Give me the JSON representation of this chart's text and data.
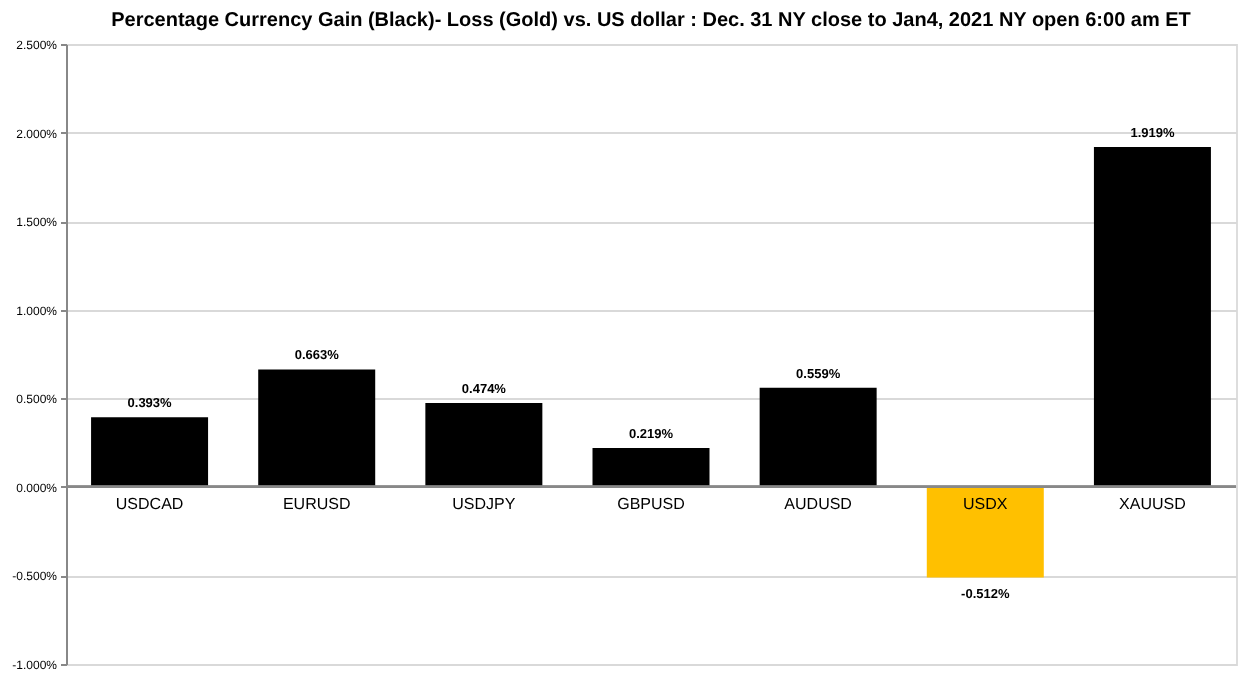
{
  "chart_data": {
    "type": "bar",
    "title": "Percentage Currency  Gain (Black)- Loss (Gold)  vs. US dollar :  Dec. 31 NY close  to  Jan4, 2021 NY open  6:00 am ET",
    "categories": [
      "USDCAD",
      "EURUSD",
      "USDJPY",
      "GBPUSD",
      "AUDUSD",
      "USDX",
      "XAUUSD"
    ],
    "values": [
      0.393,
      0.663,
      0.474,
      0.219,
      0.559,
      -0.512,
      1.919
    ],
    "colors": [
      "#000000",
      "#000000",
      "#000000",
      "#000000",
      "#000000",
      "#ffc000",
      "#000000"
    ],
    "value_labels": [
      "0.393%",
      "0.663%",
      "0.474%",
      "0.219%",
      "0.559%",
      "-0.512%",
      "1.919%"
    ],
    "ylim": [
      -1.0,
      2.5
    ],
    "yticks": [
      {
        "value": -1.0,
        "label": "-1.000%"
      },
      {
        "value": -0.5,
        "label": "-0.500%"
      },
      {
        "value": 0,
        "label": "0.000%"
      },
      {
        "value": 0.5,
        "label": "0.500%"
      },
      {
        "value": 1.0,
        "label": "1.000%"
      },
      {
        "value": 1.5,
        "label": "1.500%"
      },
      {
        "value": 2.0,
        "label": "2.000%"
      },
      {
        "value": 2.5,
        "label": "2.500%"
      }
    ],
    "grid": "y"
  }
}
